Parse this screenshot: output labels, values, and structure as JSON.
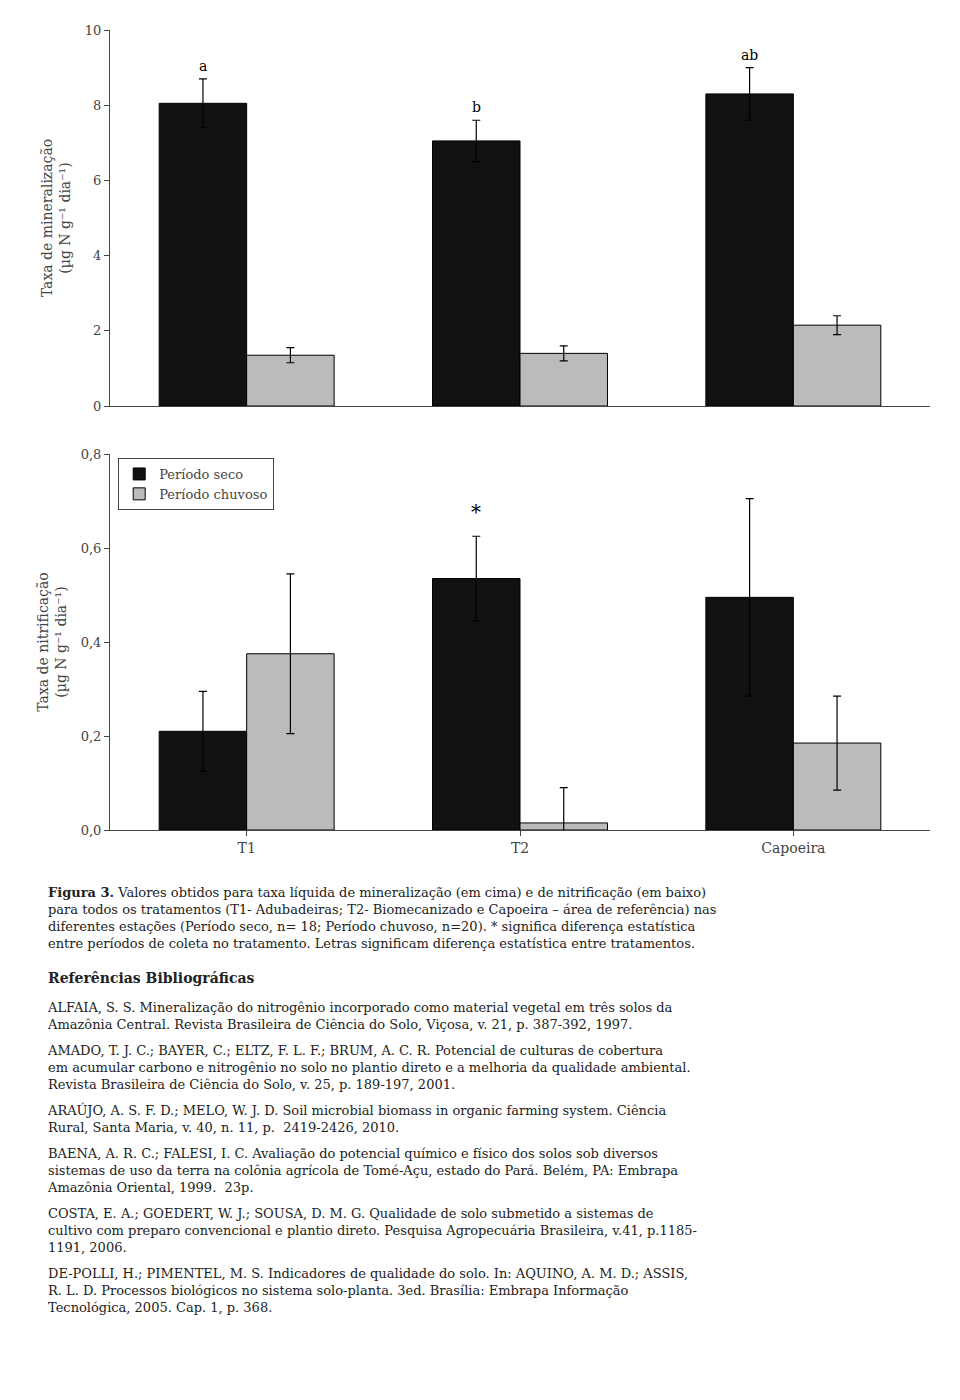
{
  "chart_data": [
    {
      "type": "bar",
      "categories": [
        "T1",
        "T2",
        "Capoeira"
      ],
      "series": [
        {
          "name": "Período seco",
          "color": "#111111",
          "values": [
            8.05,
            7.05,
            8.3
          ],
          "errors": [
            0.65,
            0.55,
            0.7
          ]
        },
        {
          "name": "Período chuvoso",
          "color": "#bbbbbb",
          "values": [
            1.35,
            1.4,
            2.15
          ],
          "errors": [
            0.2,
            0.2,
            0.25
          ]
        }
      ],
      "ylabel": "Taxa de mineralização\n(µg N g⁻¹ dia⁻¹)",
      "ylim": [
        0,
        10
      ],
      "yticks": [
        0,
        2,
        4,
        6,
        8,
        10
      ],
      "grid": false,
      "tick_labels": "y",
      "annotations": [
        {
          "category": "T1",
          "series": "Período seco",
          "text": "a"
        },
        {
          "category": "T2",
          "series": "Período seco",
          "text": "b"
        },
        {
          "category": "Capoeira",
          "series": "Período seco",
          "text": "ab"
        }
      ]
    },
    {
      "type": "bar",
      "categories": [
        "T1",
        "T2",
        "Capoeira"
      ],
      "series": [
        {
          "name": "Período seco",
          "color": "#111111",
          "values": [
            0.21,
            0.535,
            0.495
          ],
          "errors": [
            0.085,
            0.09,
            0.21
          ]
        },
        {
          "name": "Período chuvoso",
          "color": "#bbbbbb",
          "values": [
            0.375,
            0.015,
            0.185
          ],
          "errors": [
            0.17,
            0.075,
            0.1
          ]
        }
      ],
      "ylabel": "Taxa de nitrificação\n(µg N g⁻¹ dia⁻¹)",
      "ylim": [
        0,
        0.8
      ],
      "yticks": [
        {
          "value": 0.0,
          "label": "0,0"
        },
        {
          "value": 0.2,
          "label": "0,2"
        },
        {
          "value": 0.4,
          "label": "0,4"
        },
        {
          "value": 0.6,
          "label": "0,6"
        },
        {
          "value": 0.8,
          "label": "0,8"
        }
      ],
      "grid": false,
      "legend": "upper left",
      "annotations": [
        {
          "category": "T2",
          "series": "Período seco",
          "y": 0.64,
          "text": "*"
        }
      ]
    }
  ],
  "caption_bold": "Figura 3.",
  "caption": " Valores obtidos para taxa líquida de mineralização (em cima) e de nitrificação (em baixo)\npara todos os tratamentos (T1- Adubadeiras; T2- Biomecanizado e Capoeira – área de referência) nas\ndiferentes estações (Período seco, n= 18; Período chuvoso, n=20). * significa diferença estatística\nentre períodos de coleta no tratamento. Letras significam diferença estatística entre tratamentos.",
  "references_title": "Referências Bibliográficas",
  "references": [
    "ALFAIA, S. S. Mineralização do nitrogênio incorporado como material vegetal em três solos da\nAmazônia Central. Revista Brasileira de Ciência do Solo, Viçosa, v. 21, p. 387-392, 1997.",
    "AMADO, T. J. C.; BAYER, C.; ELTZ, F. L. F.; BRUM, A. C. R. Potencial de culturas de cobertura\nem acumular carbono e nitrogênio no solo no plantio direto e a melhoria da qualidade ambiental.\nRevista Brasileira de Ciência do Solo, v. 25, p. 189-197, 2001.",
    "ARAÚJO, A. S. F. D.; MELO, W. J. D. Soil microbial biomass in organic farming system. Ciência\nRural, Santa Maria, v. 40, n. 11, p.  2419-2426, 2010.",
    "BAENA, A. R. C.; FALESI, I. C. Avaliação do potencial químico e físico dos solos sob diversos\nsistemas de uso da terra na colônia agrícola de Tomé-Açu, estado do Pará. Belém, PA: Embrapa\nAmazônia Oriental, 1999.  23p.",
    "COSTA, E. A.; GOEDERT, W. J.; SOUSA, D. M. G. Qualidade de solo submetido a sistemas de\ncultivo com preparo convencional e plantio direto. Pesquisa Agropecuária Brasileira, v.41, p.1185-\n1191, 2006.",
    "DE-POLLI, H.; PIMENTEL, M. S. Indicadores de qualidade do solo. In: AQUINO, A. M. D.; ASSIS,\nR. L. D. Processos biológicos no sistema solo-planta. 3ed. Brasília: Embrapa Informação\nTecnológica, 2005. Cap. 1, p. 368."
  ]
}
